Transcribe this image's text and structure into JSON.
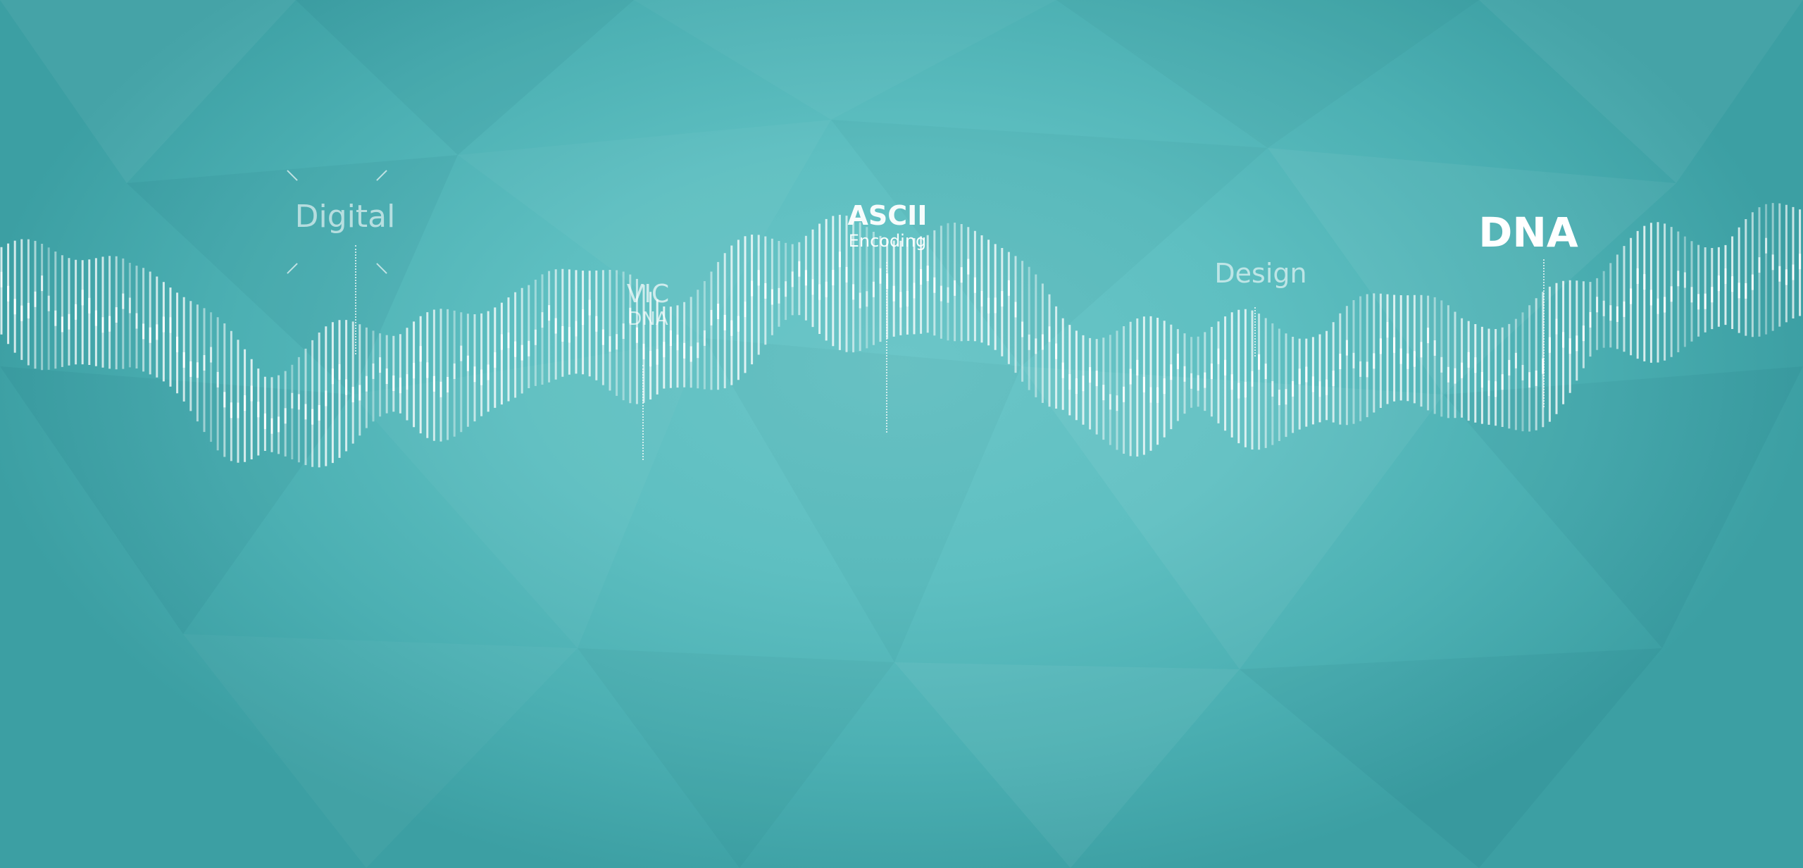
{
  "scene": {
    "background_color": "#5ebfc1",
    "bar_color": "#ffffff",
    "labels": [
      {
        "id": "digital",
        "main": "Digital",
        "sub": ""
      },
      {
        "id": "vic-dna",
        "main": "VIC",
        "sub": "DNA"
      },
      {
        "id": "ascii-encoding",
        "main": "ASCII",
        "sub": "Encoding"
      },
      {
        "id": "design",
        "main": "Design",
        "sub": ""
      },
      {
        "id": "dna",
        "main": "DNA",
        "sub": ""
      }
    ]
  }
}
